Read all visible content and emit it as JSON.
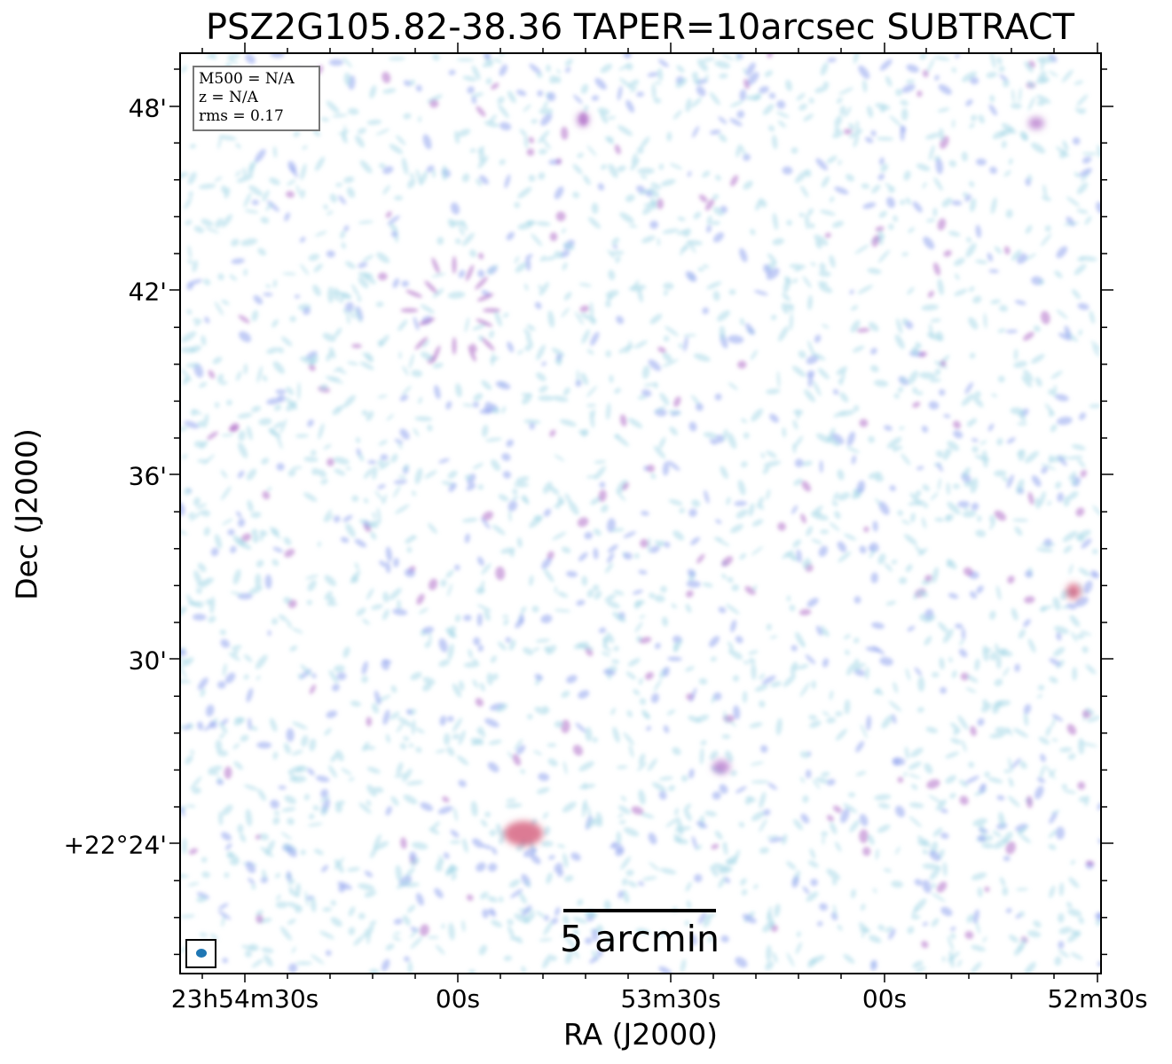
{
  "title": "PSZ2G105.82-38.36 TAPER=10arcsec SUBTRACT",
  "info_box": {
    "mass": "M500 = N/A",
    "redshift": "z = N/A",
    "rms": "rms = 0.17"
  },
  "axes": {
    "xlabel": "RA (J2000)",
    "ylabel": "Dec (J2000)",
    "x_ticks": [
      "23h54m30s",
      "00s",
      "53m30s",
      "00s",
      "52m30s"
    ],
    "y_ticks": [
      "48'",
      "42'",
      "36'",
      "30'",
      "+22°24'"
    ]
  },
  "scalebar": {
    "label": "5 arcmin"
  },
  "colors": {
    "faint": "#a8d8e8",
    "mid": "#9aaaf0",
    "bright": "#b070c8",
    "peak": "#d05070",
    "beam": "#1f77b4"
  }
}
